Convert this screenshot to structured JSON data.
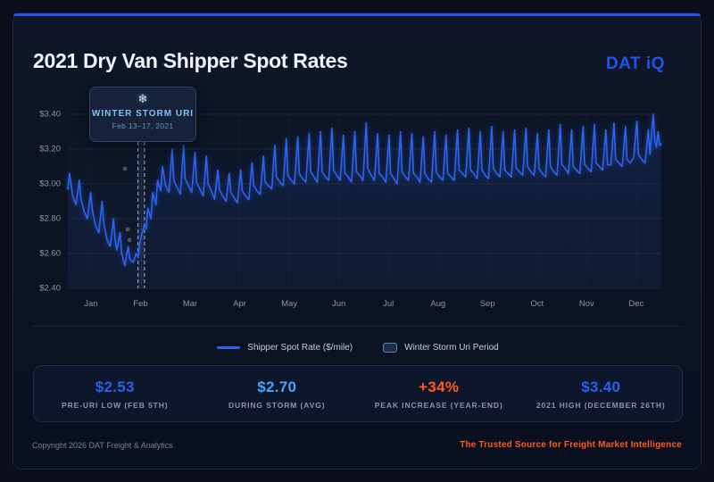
{
  "header": {
    "title": "2021 Dry Van Shipper Spot Rates",
    "logo": "DAT iQ"
  },
  "tooltip": {
    "icon": "snowflake-icon",
    "glyph": "❄",
    "title": "WINTER STORM URI",
    "subtitle": "Feb 13–17, 2021"
  },
  "chart_data": {
    "type": "line",
    "title": "2021 Dry Van Shipper Spot Rates",
    "ylabel": "Shipper Spot Rate ($/mile)",
    "ylim": [
      2.4,
      3.4
    ],
    "yticks": [
      {
        "label": "$3.40",
        "value": 3.4
      },
      {
        "label": "$3.20",
        "value": 3.2
      },
      {
        "label": "$3.00",
        "value": 3.0
      },
      {
        "label": "$2.80",
        "value": 2.8
      },
      {
        "label": "$2.60",
        "value": 2.6
      },
      {
        "label": "$2.40",
        "value": 2.4
      }
    ],
    "categories": [
      "Jan",
      "Feb",
      "Mar",
      "Apr",
      "May",
      "Jun",
      "Jul",
      "Aug",
      "Sep",
      "Oct",
      "Nov",
      "Dec"
    ],
    "grid": true,
    "legend_position": "bottom",
    "storm_period": {
      "label": "Winter Storm Uri Period",
      "start_day": 44,
      "end_day": 48
    },
    "annotations": [
      {
        "text": "Pre-Uri low $2.53 on Feb 5"
      },
      {
        "text": "During storm average $2.70"
      },
      {
        "text": "2021 high $3.40 on December 26"
      }
    ],
    "series": [
      {
        "name": "Shipper Spot Rate ($/mile)",
        "color": "#2e63f0",
        "points": [
          [
            1,
            2.97
          ],
          [
            2,
            3.06
          ],
          [
            4,
            2.93
          ],
          [
            6,
            2.88
          ],
          [
            8,
            3.02
          ],
          [
            9,
            2.92
          ],
          [
            11,
            2.84
          ],
          [
            13,
            2.8
          ],
          [
            15,
            2.95
          ],
          [
            16,
            2.85
          ],
          [
            18,
            2.76
          ],
          [
            20,
            2.72
          ],
          [
            22,
            2.9
          ],
          [
            23,
            2.78
          ],
          [
            25,
            2.68
          ],
          [
            27,
            2.64
          ],
          [
            29,
            2.8
          ],
          [
            30,
            2.68
          ],
          [
            31,
            2.62
          ],
          [
            33,
            2.72
          ],
          [
            34,
            2.6
          ],
          [
            36,
            2.53
          ],
          [
            38,
            2.64
          ],
          [
            39,
            2.57
          ],
          [
            41,
            2.55
          ],
          [
            43,
            2.6
          ],
          [
            44,
            2.58
          ],
          [
            45,
            2.65
          ],
          [
            46,
            2.7
          ],
          [
            47,
            2.73
          ],
          [
            48,
            2.77
          ],
          [
            49,
            2.74
          ],
          [
            50,
            2.86
          ],
          [
            52,
            2.8
          ],
          [
            53,
            2.95
          ],
          [
            55,
            2.88
          ],
          [
            56,
            3.02
          ],
          [
            58,
            2.96
          ],
          [
            59,
            3.1
          ],
          [
            61,
            2.99
          ],
          [
            63,
            2.95
          ],
          [
            65,
            3.2
          ],
          [
            66,
            3.02
          ],
          [
            68,
            2.98
          ],
          [
            70,
            2.94
          ],
          [
            72,
            3.22
          ],
          [
            73,
            3.03
          ],
          [
            75,
            2.99
          ],
          [
            77,
            2.95
          ],
          [
            79,
            3.18
          ],
          [
            80,
            3.01
          ],
          [
            82,
            2.97
          ],
          [
            84,
            2.93
          ],
          [
            86,
            3.16
          ],
          [
            87,
            3.0
          ],
          [
            89,
            2.96
          ],
          [
            91,
            2.91
          ],
          [
            93,
            3.08
          ],
          [
            94,
            2.97
          ],
          [
            96,
            2.93
          ],
          [
            98,
            2.9
          ],
          [
            100,
            3.06
          ],
          [
            101,
            2.95
          ],
          [
            103,
            2.92
          ],
          [
            105,
            2.89
          ],
          [
            107,
            3.08
          ],
          [
            108,
            2.96
          ],
          [
            110,
            2.93
          ],
          [
            112,
            2.91
          ],
          [
            114,
            3.12
          ],
          [
            115,
            2.99
          ],
          [
            117,
            2.96
          ],
          [
            119,
            2.94
          ],
          [
            121,
            3.16
          ],
          [
            122,
            3.01
          ],
          [
            124,
            2.99
          ],
          [
            126,
            2.97
          ],
          [
            128,
            3.22
          ],
          [
            129,
            3.04
          ],
          [
            131,
            3.01
          ],
          [
            133,
            2.99
          ],
          [
            135,
            3.26
          ],
          [
            136,
            3.05
          ],
          [
            138,
            3.02
          ],
          [
            140,
            3.0
          ],
          [
            142,
            3.27
          ],
          [
            143,
            3.06
          ],
          [
            145,
            3.03
          ],
          [
            147,
            3.01
          ],
          [
            149,
            3.29
          ],
          [
            150,
            3.07
          ],
          [
            152,
            3.04
          ],
          [
            154,
            3.01
          ],
          [
            156,
            3.3
          ],
          [
            157,
            3.07
          ],
          [
            159,
            3.04
          ],
          [
            161,
            3.02
          ],
          [
            163,
            3.32
          ],
          [
            164,
            3.08
          ],
          [
            166,
            3.05
          ],
          [
            168,
            3.02
          ],
          [
            170,
            3.28
          ],
          [
            171,
            3.06
          ],
          [
            173,
            3.04
          ],
          [
            175,
            3.01
          ],
          [
            177,
            3.3
          ],
          [
            178,
            3.07
          ],
          [
            180,
            3.05
          ],
          [
            182,
            3.02
          ],
          [
            184,
            3.35
          ],
          [
            185,
            3.09
          ],
          [
            187,
            3.05
          ],
          [
            189,
            3.02
          ],
          [
            191,
            3.29
          ],
          [
            192,
            3.06
          ],
          [
            194,
            3.04
          ],
          [
            196,
            3.01
          ],
          [
            198,
            3.28
          ],
          [
            199,
            3.06
          ],
          [
            201,
            3.03
          ],
          [
            203,
            3.0
          ],
          [
            205,
            3.3
          ],
          [
            206,
            3.07
          ],
          [
            208,
            3.04
          ],
          [
            210,
            3.02
          ],
          [
            212,
            3.29
          ],
          [
            213,
            3.06
          ],
          [
            215,
            3.04
          ],
          [
            217,
            3.01
          ],
          [
            219,
            3.27
          ],
          [
            220,
            3.06
          ],
          [
            222,
            3.03
          ],
          [
            224,
            3.01
          ],
          [
            226,
            3.3
          ],
          [
            227,
            3.07
          ],
          [
            229,
            3.04
          ],
          [
            231,
            3.02
          ],
          [
            233,
            3.28
          ],
          [
            234,
            3.06
          ],
          [
            236,
            3.04
          ],
          [
            238,
            3.02
          ],
          [
            240,
            3.31
          ],
          [
            241,
            3.08
          ],
          [
            243,
            3.06
          ],
          [
            245,
            3.04
          ],
          [
            247,
            3.32
          ],
          [
            248,
            3.08
          ],
          [
            250,
            3.06
          ],
          [
            252,
            3.03
          ],
          [
            254,
            3.3
          ],
          [
            255,
            3.08
          ],
          [
            257,
            3.05
          ],
          [
            259,
            3.03
          ],
          [
            261,
            3.33
          ],
          [
            262,
            3.09
          ],
          [
            264,
            3.06
          ],
          [
            266,
            3.04
          ],
          [
            268,
            3.3
          ],
          [
            269,
            3.08
          ],
          [
            271,
            3.06
          ],
          [
            273,
            3.04
          ],
          [
            275,
            3.31
          ],
          [
            276,
            3.09
          ],
          [
            278,
            3.07
          ],
          [
            280,
            3.05
          ],
          [
            282,
            3.32
          ],
          [
            283,
            3.1
          ],
          [
            285,
            3.07
          ],
          [
            287,
            3.05
          ],
          [
            289,
            3.29
          ],
          [
            290,
            3.09
          ],
          [
            292,
            3.06
          ],
          [
            294,
            3.04
          ],
          [
            296,
            3.31
          ],
          [
            297,
            3.1
          ],
          [
            299,
            3.07
          ],
          [
            301,
            3.05
          ],
          [
            303,
            3.34
          ],
          [
            304,
            3.11
          ],
          [
            306,
            3.09
          ],
          [
            308,
            3.06
          ],
          [
            310,
            3.31
          ],
          [
            311,
            3.1
          ],
          [
            313,
            3.08
          ],
          [
            315,
            3.06
          ],
          [
            317,
            3.33
          ],
          [
            318,
            3.11
          ],
          [
            320,
            3.09
          ],
          [
            322,
            3.07
          ],
          [
            324,
            3.34
          ],
          [
            325,
            3.12
          ],
          [
            327,
            3.1
          ],
          [
            329,
            3.08
          ],
          [
            331,
            3.31
          ],
          [
            332,
            3.11
          ],
          [
            334,
            3.11
          ],
          [
            336,
            3.35
          ],
          [
            337,
            3.14
          ],
          [
            339,
            3.12
          ],
          [
            341,
            3.1
          ],
          [
            343,
            3.33
          ],
          [
            344,
            3.14
          ],
          [
            346,
            3.12
          ],
          [
            348,
            3.15
          ],
          [
            350,
            3.36
          ],
          [
            351,
            3.17
          ],
          [
            353,
            3.14
          ],
          [
            355,
            3.12
          ],
          [
            357,
            3.31
          ],
          [
            358,
            3.17
          ],
          [
            360,
            3.4
          ],
          [
            361,
            3.25
          ],
          [
            362,
            3.21
          ],
          [
            363,
            3.3
          ],
          [
            364,
            3.22
          ],
          [
            365,
            3.23
          ]
        ]
      }
    ]
  },
  "legend": {
    "items": [
      {
        "swatch": "line",
        "label": "Shipper Spot Rate ($/mile)"
      },
      {
        "swatch": "box",
        "label": "Winter Storm Uri Period"
      }
    ]
  },
  "stats": {
    "items": [
      {
        "value": "$2.53",
        "label": "PRE-URI LOW (FEB 5TH)",
        "color": "#2563eb"
      },
      {
        "value": "$2.70",
        "label": "DURING STORM (AVG)",
        "color": "#4aa3ff"
      },
      {
        "value": "+34%",
        "label": "PEAK INCREASE (YEAR-END)",
        "color": "#ff5b1e"
      },
      {
        "value": "$3.40",
        "label": "2021 HIGH (DECEMBER 26TH)",
        "color": "#2563eb"
      }
    ]
  },
  "footer": {
    "copyright": "Copyright 2026 DAT Freight & Analytics",
    "tagline": "The Trusted Source for Freight Market Intelligence"
  }
}
